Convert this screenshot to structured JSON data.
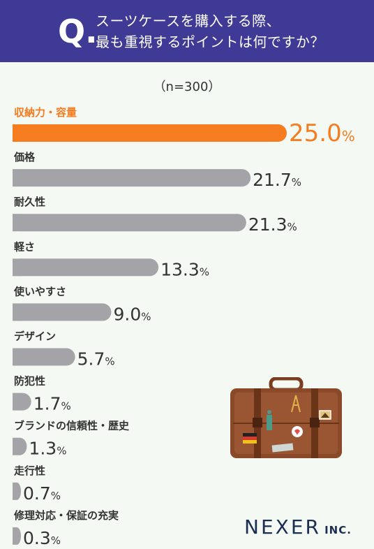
{
  "header": {
    "q_mark": "Q.",
    "question_line1": "スーツケースを購入する際、",
    "question_line2": "最も重視するポイントは何ですか？"
  },
  "sample_size": "（n=300）",
  "chart_data": {
    "type": "bar",
    "orientation": "horizontal",
    "categories": [
      "収納力・容量",
      "価格",
      "耐久性",
      "軽さ",
      "使いやすさ",
      "デザイン",
      "防犯性",
      "ブランドの信頼性・歴史",
      "走行性",
      "修理対応・保証の充実"
    ],
    "values": [
      25.0,
      21.7,
      21.3,
      13.3,
      9.0,
      5.7,
      1.7,
      1.3,
      0.7,
      0.3
    ],
    "value_labels": [
      "25.0",
      "21.7",
      "21.3",
      "13.3",
      "9.0",
      "5.7",
      "1.7",
      "1.3",
      "0.7",
      "0.3"
    ],
    "unit": "%",
    "highlight_index": 0,
    "colors": {
      "highlight": "#f57c1f",
      "default": "#a3a3a8",
      "label": "#333333"
    }
  },
  "logo": {
    "main": "NEXER",
    "sub": "INC."
  }
}
